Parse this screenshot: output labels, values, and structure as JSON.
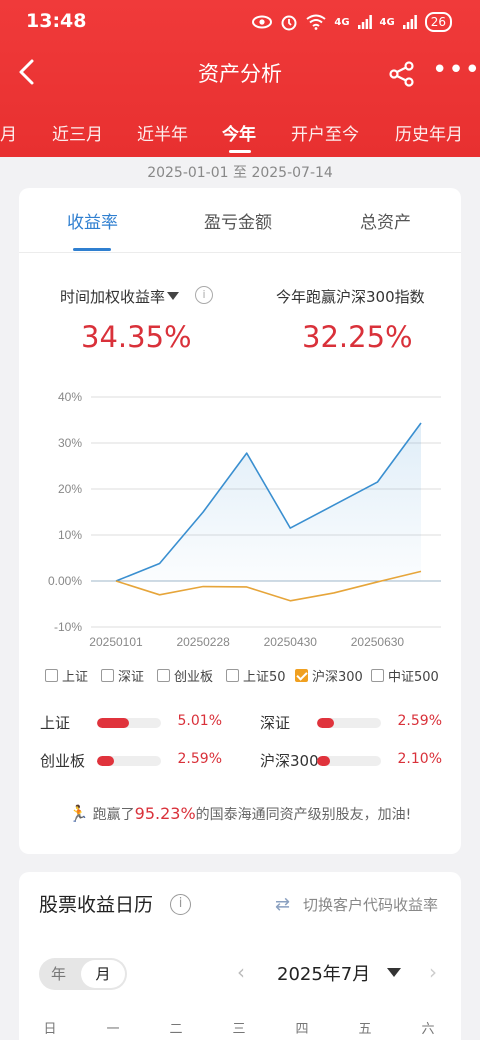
{
  "status": {
    "time": "13:48",
    "battery": "26",
    "signal1": "4G",
    "signal2": "4G"
  },
  "nav": {
    "title": "资产分析"
  },
  "period_tabs": [
    {
      "label": "月"
    },
    {
      "label": "近三月"
    },
    {
      "label": "近半年"
    },
    {
      "label": "今年",
      "active": true
    },
    {
      "label": "开户至今"
    },
    {
      "label": "历史年月"
    }
  ],
  "date_range": "2025-01-01 至 2025-07-14",
  "metric_tabs": [
    {
      "label": "收益率",
      "active": true
    },
    {
      "label": "盈亏金额"
    },
    {
      "label": "总资产"
    }
  ],
  "metrics": {
    "left_label": "时间加权收益率",
    "left_value": "34.35%",
    "right_label": "今年跑赢沪深300指数",
    "right_value": "32.25%"
  },
  "chart_data": {
    "type": "line",
    "x": [
      "20250101",
      "20250201",
      "20250301",
      "20250401",
      "20250501",
      "20250601",
      "20250701",
      "20250714"
    ],
    "xticks": [
      "20250101",
      "20250228",
      "20250430",
      "20250630"
    ],
    "ylim": [
      -10,
      40
    ],
    "yticks": [
      "40%",
      "30%",
      "20%",
      "10%",
      "0.00%",
      "-10%"
    ],
    "series": [
      {
        "values": [
          0,
          3.8,
          15.0,
          27.8,
          11.5,
          16.5,
          21.5,
          34.35
        ],
        "color": "#3a8fd0"
      },
      {
        "values": [
          0,
          -3.0,
          -1.2,
          -1.3,
          -4.3,
          -2.6,
          -0.2,
          2.1
        ],
        "color": "#e6a53a"
      }
    ]
  },
  "legend": [
    {
      "label": "上证",
      "checked": false
    },
    {
      "label": "深证",
      "checked": false
    },
    {
      "label": "创业板",
      "checked": false
    },
    {
      "label": "上证50",
      "checked": false
    },
    {
      "label": "沪深300",
      "checked": true
    },
    {
      "label": "中证500",
      "checked": false
    }
  ],
  "index_bars": [
    {
      "label": "上证",
      "value": "5.01%",
      "fill": 0.5
    },
    {
      "label": "深证",
      "value": "2.59%",
      "fill": 0.26
    },
    {
      "label": "创业板",
      "value": "2.59%",
      "fill": 0.26
    },
    {
      "label": "沪深300",
      "value": "2.10%",
      "fill": 0.21
    }
  ],
  "beat": {
    "prefix": "跑赢了",
    "pct": "95.23%",
    "suffix": "的国泰海通同资产级别股友，加油!"
  },
  "calendar": {
    "title": "股票收益日历",
    "switch_label": "切换客户代码收益率",
    "seg_year": "年",
    "seg_month": "月",
    "month": "2025年7月",
    "weekdays": [
      "日",
      "一",
      "二",
      "三",
      "四",
      "五",
      "六"
    ]
  }
}
